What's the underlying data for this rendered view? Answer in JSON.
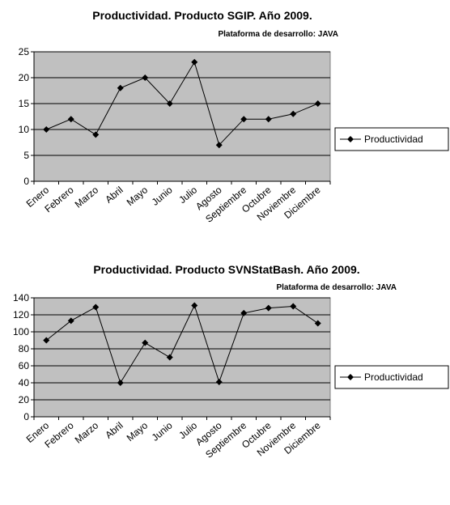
{
  "chart_data": [
    {
      "type": "line",
      "title": "Productividad. Producto SGIP. Año 2009.",
      "subtitle": "Plataforma de desarrollo: JAVA",
      "categories": [
        "Enero",
        "Febrero",
        "Marzo",
        "Abril",
        "Mayo",
        "Junio",
        "Julio",
        "Agosto",
        "Septiembre",
        "Octubre",
        "Noviembre",
        "Diciembre"
      ],
      "series": [
        {
          "name": "Productividad",
          "values": [
            10,
            12,
            9,
            18,
            20,
            15,
            23,
            7,
            12,
            12,
            13,
            15
          ]
        }
      ],
      "ylim": [
        0,
        25
      ],
      "yticks": [
        0,
        5,
        10,
        15,
        20,
        25
      ],
      "grid": true,
      "legend_position": "right",
      "plot_background": "#c0c0c0",
      "line_color": "#000000"
    },
    {
      "type": "line",
      "title": "Productividad. Producto SVNStatBash. Año 2009.",
      "subtitle": "Plataforma de desarrollo: JAVA",
      "categories": [
        "Enero",
        "Febrero",
        "Marzo",
        "Abril",
        "Mayo",
        "Junio",
        "Julio",
        "Agosto",
        "Septiembre",
        "Octubre",
        "Noviembre",
        "Diciembre"
      ],
      "series": [
        {
          "name": "Productividad",
          "values": [
            90,
            113,
            129,
            40,
            87,
            70,
            131,
            41,
            122,
            128,
            130,
            110
          ]
        }
      ],
      "ylim": [
        0,
        140
      ],
      "yticks": [
        0,
        20,
        40,
        60,
        80,
        100,
        120,
        140
      ],
      "grid": true,
      "legend_position": "right",
      "plot_background": "#c0c0c0",
      "line_color": "#000000"
    }
  ]
}
